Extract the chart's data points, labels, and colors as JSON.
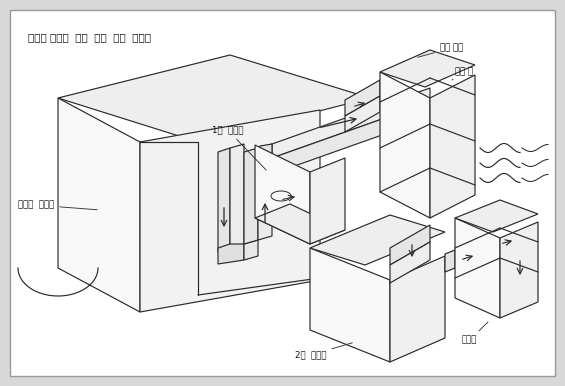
{
  "title": "음식물 처리기 폐열 회수 장치 구조도",
  "canvas_bg": "#d8d8d8",
  "inner_bg": "#ffffff",
  "border_color": "#888888",
  "line_color": "#2a2a2a",
  "fill_light": "#f8f8f8",
  "fill_mid": "#eeeeee",
  "fill_dark": "#e2e2e2",
  "labels": {
    "main_title": "음식물 처리기  폐열  회수  장치  구조도",
    "label1": "급기 장치",
    "label2": "순환 팬",
    "label3": "1차  냉각기",
    "label4": "음식물  교반부",
    "label5": "송풍기",
    "label6": "2차  냉각기"
  }
}
